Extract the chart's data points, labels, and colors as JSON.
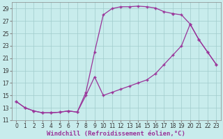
{
  "xlabel": "Windchill (Refroidissement éolien,°C)",
  "bg_color": "#c8ecec",
  "grid_color": "#a0cccc",
  "line_color": "#993399",
  "ylim": [
    11,
    30
  ],
  "xlim": [
    -0.5,
    23.5
  ],
  "yticks": [
    11,
    13,
    15,
    17,
    19,
    21,
    23,
    25,
    27,
    29
  ],
  "xticks": [
    0,
    1,
    2,
    3,
    4,
    5,
    6,
    7,
    8,
    9,
    10,
    11,
    12,
    13,
    14,
    15,
    16,
    17,
    18,
    19,
    20,
    21,
    22,
    23
  ],
  "line1_x": [
    0,
    1,
    2,
    3,
    4,
    5,
    6,
    7,
    8,
    9,
    10,
    11,
    12,
    13,
    14,
    15,
    16,
    17,
    18
  ],
  "line1_y": [
    14,
    13,
    12.5,
    12.2,
    12.2,
    12.3,
    12.5,
    12.3,
    15.5,
    22.0,
    28.0,
    29.0,
    29.3,
    29.3,
    29.4,
    29.3,
    29.1,
    28.5,
    28.2
  ],
  "line2_x": [
    0,
    1,
    2,
    3,
    4,
    5,
    6,
    7,
    8,
    9,
    10,
    11,
    12,
    13,
    14,
    15,
    16,
    17,
    18,
    19,
    20,
    21,
    22,
    23
  ],
  "line2_y": [
    14,
    13,
    12.5,
    12.2,
    12.2,
    12.3,
    12.5,
    12.3,
    15.0,
    18.0,
    15.0,
    15.5,
    16.0,
    16.5,
    17.0,
    17.5,
    18.5,
    20.0,
    21.5,
    23.0,
    26.5,
    24.0,
    22.0,
    20.0
  ],
  "line3_x": [
    18,
    19,
    20,
    21,
    22,
    23
  ],
  "line3_y": [
    28.2,
    28.0,
    26.5,
    24.0,
    22.0,
    20.0
  ],
  "markersize": 2.5,
  "linewidth": 0.9,
  "xlabel_fontsize": 6.5,
  "tick_fontsize": 5.5
}
